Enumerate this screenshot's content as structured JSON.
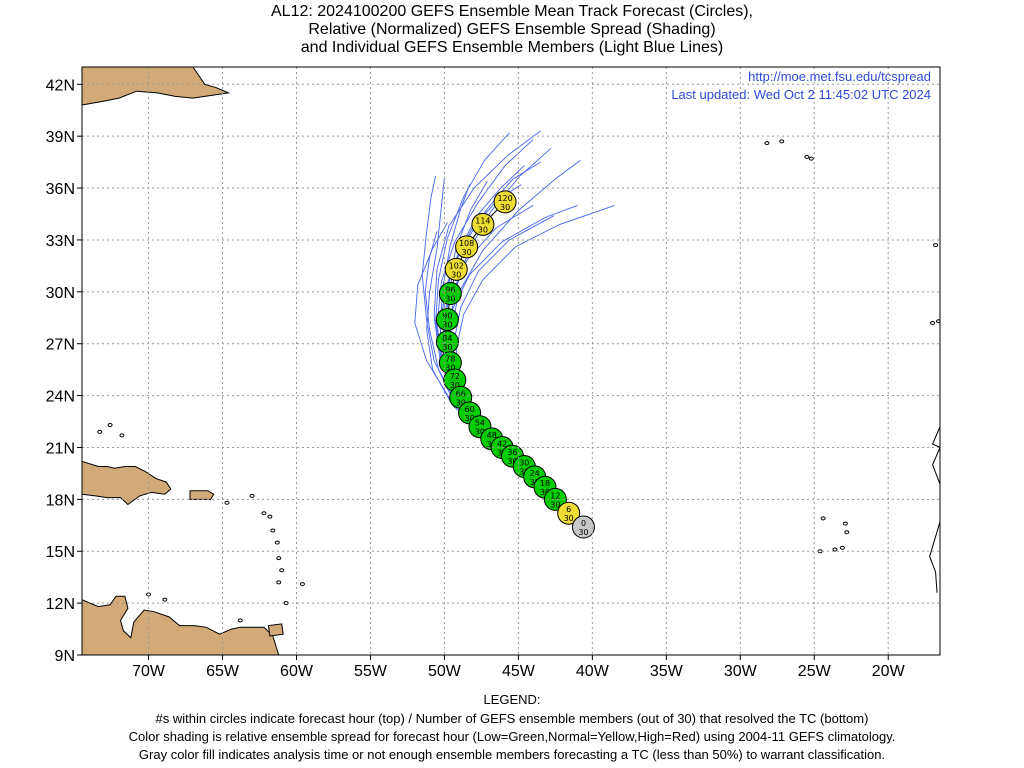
{
  "title": {
    "line1": "AL12: 2024100200 GEFS Ensemble Mean Track Forecast (Circles),",
    "line2": "Relative (Normalized) GEFS Ensemble Spread (Shading)",
    "line3": "and Individual GEFS Ensemble Members (Light Blue Lines)"
  },
  "site": {
    "url": "http://moe.met.fsu.edu/tcspread",
    "updated": "Last updated:  Wed Oct 2 11:45:02 UTC 2024"
  },
  "legend": {
    "heading": "LEGEND:",
    "line1": "#s within circles indicate forecast hour (top) / Number of GEFS ensemble members (out of 30) that resolved the TC (bottom)",
    "line2": "Color shading is relative ensemble spread for forecast hour (Low=Green,Normal=Yellow,High=Red) using 2004-11 GEFS climatology.",
    "line3": "Gray color fill indicates analysis time or not enough ensemble members forecasting a TC (less than 50%) to warrant classification."
  },
  "colors": {
    "land": "#d2aa78",
    "member_lines": "#4466ee",
    "low_spread": "#00cc00",
    "normal_spread": "#eedd33",
    "analysis_gray": "#c8c8c8",
    "site_text": "#2e4bd6"
  },
  "chart_data": {
    "type": "scatter",
    "xlim": [
      -74.5,
      -16.5
    ],
    "ylim": [
      9,
      43
    ],
    "x_ticks": [
      -70,
      -65,
      -60,
      -55,
      -50,
      -45,
      -40,
      -35,
      -30,
      -25,
      -20
    ],
    "x_tick_labels": [
      "70W",
      "65W",
      "60W",
      "55W",
      "50W",
      "45W",
      "40W",
      "35W",
      "30W",
      "25W",
      "20W"
    ],
    "y_ticks": [
      9,
      12,
      15,
      18,
      21,
      24,
      27,
      30,
      33,
      36,
      39,
      42
    ],
    "y_tick_labels": [
      "9N",
      "12N",
      "15N",
      "18N",
      "21N",
      "24N",
      "27N",
      "30N",
      "33N",
      "36N",
      "39N",
      "42N"
    ],
    "grid": true,
    "mean_track": [
      {
        "hour": "0",
        "members": "30",
        "lon": -40.6,
        "lat": 16.4,
        "spread": "gray"
      },
      {
        "hour": "6",
        "members": "30",
        "lon": -41.6,
        "lat": 17.2,
        "spread": "normal"
      },
      {
        "hour": "12",
        "members": "30",
        "lon": -42.5,
        "lat": 18.0,
        "spread": "low"
      },
      {
        "hour": "18",
        "members": "30",
        "lon": -43.2,
        "lat": 18.7,
        "spread": "low"
      },
      {
        "hour": "24",
        "members": "30",
        "lon": -43.9,
        "lat": 19.3,
        "spread": "low"
      },
      {
        "hour": "30",
        "members": "30",
        "lon": -44.6,
        "lat": 19.9,
        "spread": "low"
      },
      {
        "hour": "36",
        "members": "30",
        "lon": -45.4,
        "lat": 20.5,
        "spread": "low"
      },
      {
        "hour": "42",
        "members": "30",
        "lon": -46.1,
        "lat": 21.0,
        "spread": "low"
      },
      {
        "hour": "48",
        "members": "30",
        "lon": -46.8,
        "lat": 21.5,
        "spread": "low"
      },
      {
        "hour": "54",
        "members": "30",
        "lon": -47.6,
        "lat": 22.2,
        "spread": "low"
      },
      {
        "hour": "60",
        "members": "30",
        "lon": -48.3,
        "lat": 23.0,
        "spread": "low"
      },
      {
        "hour": "66",
        "members": "30",
        "lon": -48.9,
        "lat": 23.9,
        "spread": "low"
      },
      {
        "hour": "72",
        "members": "30",
        "lon": -49.3,
        "lat": 24.9,
        "spread": "low"
      },
      {
        "hour": "78",
        "members": "30",
        "lon": -49.6,
        "lat": 25.9,
        "spread": "low"
      },
      {
        "hour": "84",
        "members": "30",
        "lon": -49.8,
        "lat": 27.1,
        "spread": "low"
      },
      {
        "hour": "90",
        "members": "30",
        "lon": -49.8,
        "lat": 28.4,
        "spread": "low"
      },
      {
        "hour": "96",
        "members": "30",
        "lon": -49.6,
        "lat": 29.9,
        "spread": "low"
      },
      {
        "hour": "102",
        "members": "30",
        "lon": -49.2,
        "lat": 31.3,
        "spread": "normal"
      },
      {
        "hour": "108",
        "members": "30",
        "lon": -48.5,
        "lat": 32.6,
        "spread": "normal"
      },
      {
        "hour": "114",
        "members": "30",
        "lon": -47.4,
        "lat": 33.9,
        "spread": "normal"
      },
      {
        "hour": "120",
        "members": "30",
        "lon": -45.9,
        "lat": 35.2,
        "spread": "normal"
      }
    ],
    "members": [
      [
        [
          -47.5,
          21.8
        ],
        [
          -49.5,
          23.5
        ],
        [
          -50.8,
          25.5
        ],
        [
          -51.2,
          27.8
        ],
        [
          -51.0,
          30.0
        ],
        [
          -50.5,
          32.5
        ],
        [
          -50.2,
          35.0
        ],
        [
          -50.0,
          36.6
        ]
      ],
      [
        [
          -47.5,
          21.8
        ],
        [
          -49.3,
          23.5
        ],
        [
          -50.4,
          25.5
        ],
        [
          -51.0,
          27.8
        ],
        [
          -51.3,
          30.0
        ],
        [
          -51.0,
          32.0
        ],
        [
          -50.5,
          33.5
        ]
      ],
      [
        [
          -47.5,
          21.8
        ],
        [
          -49.0,
          23.3
        ],
        [
          -49.8,
          25.3
        ],
        [
          -50.0,
          27.5
        ],
        [
          -49.6,
          29.7
        ],
        [
          -48.5,
          31.8
        ],
        [
          -46.5,
          33.7
        ],
        [
          -44.0,
          35.0
        ]
      ],
      [
        [
          -47.5,
          21.8
        ],
        [
          -48.9,
          23.6
        ],
        [
          -49.6,
          25.7
        ],
        [
          -49.9,
          27.9
        ],
        [
          -49.7,
          30.1
        ],
        [
          -49.0,
          32.4
        ],
        [
          -47.8,
          34.4
        ],
        [
          -46.2,
          36.0
        ],
        [
          -44.6,
          37.3
        ]
      ],
      [
        [
          -47.5,
          21.8
        ],
        [
          -48.8,
          23.2
        ],
        [
          -49.6,
          24.8
        ],
        [
          -49.9,
          26.8
        ],
        [
          -49.5,
          28.9
        ],
        [
          -48.3,
          31.0
        ],
        [
          -46.1,
          32.9
        ],
        [
          -43.2,
          34.3
        ],
        [
          -41.0,
          35.0
        ]
      ],
      [
        [
          -47.5,
          21.8
        ],
        [
          -49.1,
          23.8
        ],
        [
          -50.1,
          25.9
        ],
        [
          -50.5,
          28.1
        ],
        [
          -50.2,
          30.6
        ],
        [
          -49.3,
          32.9
        ],
        [
          -47.7,
          35.2
        ],
        [
          -45.9,
          37.3
        ],
        [
          -44.0,
          38.8
        ]
      ],
      [
        [
          -47.5,
          21.8
        ],
        [
          -48.6,
          23.1
        ],
        [
          -49.1,
          24.8
        ],
        [
          -49.2,
          26.7
        ],
        [
          -48.7,
          28.7
        ],
        [
          -47.4,
          30.7
        ],
        [
          -45.2,
          32.6
        ],
        [
          -42.2,
          33.9
        ],
        [
          -38.5,
          35.0
        ]
      ],
      [
        [
          -47.5,
          21.8
        ],
        [
          -49.4,
          23.9
        ],
        [
          -50.7,
          26.0
        ],
        [
          -51.2,
          28.3
        ],
        [
          -51.5,
          31.0
        ],
        [
          -51.2,
          33.5
        ],
        [
          -50.9,
          35.5
        ],
        [
          -50.6,
          36.7
        ]
      ],
      [
        [
          -47.5,
          21.8
        ],
        [
          -48.9,
          23.5
        ],
        [
          -49.6,
          25.6
        ],
        [
          -49.7,
          27.7
        ],
        [
          -49.3,
          30.0
        ],
        [
          -48.4,
          32.3
        ],
        [
          -46.9,
          34.6
        ],
        [
          -44.9,
          36.7
        ],
        [
          -42.8,
          38.3
        ]
      ],
      [
        [
          -47.5,
          21.8
        ],
        [
          -49.0,
          23.6
        ],
        [
          -49.9,
          25.6
        ],
        [
          -50.3,
          27.9
        ],
        [
          -50.1,
          30.3
        ],
        [
          -49.6,
          32.7
        ],
        [
          -48.9,
          34.8
        ],
        [
          -48.3,
          36.2
        ]
      ],
      [
        [
          -47.5,
          21.8
        ],
        [
          -49.7,
          23.9
        ],
        [
          -51.2,
          26.0
        ],
        [
          -52.0,
          28.2
        ],
        [
          -51.8,
          30.4
        ],
        [
          -50.8,
          32.5
        ],
        [
          -49.8,
          34.0
        ]
      ],
      [
        [
          -47.5,
          21.8
        ],
        [
          -48.8,
          23.4
        ],
        [
          -49.5,
          25.4
        ],
        [
          -49.6,
          27.6
        ],
        [
          -49.0,
          30.0
        ],
        [
          -47.4,
          32.4
        ],
        [
          -45.0,
          34.7
        ],
        [
          -42.4,
          36.6
        ],
        [
          -40.8,
          37.6
        ]
      ],
      [
        [
          -47.5,
          21.8
        ],
        [
          -49.2,
          23.8
        ],
        [
          -50.2,
          26.0
        ],
        [
          -50.6,
          28.3
        ],
        [
          -50.4,
          30.7
        ],
        [
          -49.8,
          33.1
        ],
        [
          -48.7,
          35.5
        ],
        [
          -47.3,
          37.6
        ],
        [
          -45.6,
          39.2
        ]
      ],
      [
        [
          -47.5,
          21.8
        ],
        [
          -48.7,
          23.2
        ],
        [
          -49.3,
          24.9
        ],
        [
          -49.4,
          26.9
        ],
        [
          -48.9,
          29.1
        ],
        [
          -47.7,
          31.2
        ],
        [
          -45.6,
          33.0
        ],
        [
          -42.6,
          34.4
        ]
      ],
      [
        [
          -47.5,
          21.8
        ],
        [
          -49.3,
          23.8
        ],
        [
          -50.3,
          26.1
        ],
        [
          -50.7,
          28.6
        ],
        [
          -50.5,
          31.3
        ],
        [
          -49.7,
          33.8
        ],
        [
          -48.0,
          36.0
        ],
        [
          -45.7,
          37.9
        ],
        [
          -43.5,
          39.3
        ]
      ],
      [
        [
          -47.5,
          21.8
        ],
        [
          -49.0,
          23.5
        ],
        [
          -49.8,
          25.5
        ],
        [
          -50.0,
          27.7
        ],
        [
          -49.8,
          30.1
        ],
        [
          -49.2,
          32.6
        ],
        [
          -48.2,
          34.8
        ],
        [
          -47.1,
          36.4
        ]
      ],
      [
        [
          -47.5,
          21.8
        ],
        [
          -48.9,
          23.4
        ],
        [
          -49.7,
          25.2
        ],
        [
          -50.1,
          27.2
        ],
        [
          -50.0,
          29.4
        ],
        [
          -49.4,
          31.6
        ],
        [
          -48.1,
          33.7
        ],
        [
          -46.3,
          35.4
        ],
        [
          -44.8,
          36.2
        ]
      ],
      [
        [
          -47.5,
          21.8
        ],
        [
          -49.1,
          23.7
        ],
        [
          -50.0,
          25.8
        ],
        [
          -50.3,
          28.0
        ],
        [
          -49.9,
          30.3
        ],
        [
          -48.8,
          32.6
        ],
        [
          -47.1,
          34.8
        ],
        [
          -45.4,
          36.5
        ],
        [
          -43.5,
          37.5
        ]
      ]
    ],
    "land": [
      {
        "name": "hispaniola-puerto-rico",
        "points": [
          [
            -74.5,
            20.2
          ],
          [
            -73.4,
            19.9
          ],
          [
            -72.8,
            19.9
          ],
          [
            -72.3,
            19.8
          ],
          [
            -71.6,
            19.9
          ],
          [
            -70.9,
            19.9
          ],
          [
            -70.2,
            19.6
          ],
          [
            -69.5,
            19.2
          ],
          [
            -68.8,
            19.0
          ],
          [
            -68.5,
            18.6
          ],
          [
            -68.9,
            18.3
          ],
          [
            -69.8,
            18.4
          ],
          [
            -70.6,
            18.2
          ],
          [
            -71.4,
            17.7
          ],
          [
            -71.9,
            18.1
          ],
          [
            -72.8,
            18.1
          ],
          [
            -73.6,
            18.2
          ],
          [
            -74.5,
            18.3
          ]
        ]
      },
      {
        "name": "puerto-rico",
        "points": [
          [
            -67.2,
            18.5
          ],
          [
            -66.0,
            18.5
          ],
          [
            -65.6,
            18.3
          ],
          [
            -65.8,
            18.0
          ],
          [
            -67.2,
            18.0
          ]
        ]
      },
      {
        "name": "south-america",
        "points": [
          [
            -74.5,
            12.2
          ],
          [
            -73.4,
            11.8
          ],
          [
            -72.6,
            11.9
          ],
          [
            -72.2,
            12.4
          ],
          [
            -71.6,
            12.4
          ],
          [
            -71.4,
            11.7
          ],
          [
            -71.9,
            11.0
          ],
          [
            -71.7,
            10.4
          ],
          [
            -71.2,
            10.0
          ],
          [
            -71.0,
            10.9
          ],
          [
            -70.3,
            11.6
          ],
          [
            -69.6,
            11.5
          ],
          [
            -68.6,
            11.2
          ],
          [
            -67.9,
            10.7
          ],
          [
            -66.9,
            10.7
          ],
          [
            -66.1,
            10.6
          ],
          [
            -65.2,
            10.2
          ],
          [
            -64.4,
            10.5
          ],
          [
            -63.8,
            10.6
          ],
          [
            -62.8,
            10.6
          ],
          [
            -62.2,
            10.6
          ],
          [
            -61.6,
            10.1
          ],
          [
            -61.2,
            9.0
          ],
          [
            -74.5,
            9.0
          ]
        ]
      },
      {
        "name": "trinidad",
        "points": [
          [
            -61.9,
            10.7
          ],
          [
            -61.0,
            10.8
          ],
          [
            -60.9,
            10.2
          ],
          [
            -61.8,
            10.1
          ]
        ]
      },
      {
        "name": "newfoundland-nova-scotia",
        "points": [
          [
            -74.5,
            43.0
          ],
          [
            -67.0,
            43.0
          ],
          [
            -66.2,
            42.0
          ],
          [
            -65.4,
            41.8
          ],
          [
            -64.6,
            41.5
          ],
          [
            -67.0,
            41.2
          ],
          [
            -68.2,
            41.3
          ],
          [
            -69.4,
            41.5
          ],
          [
            -70.8,
            41.6
          ],
          [
            -72.0,
            41.2
          ],
          [
            -73.2,
            41.0
          ],
          [
            -74.5,
            40.8
          ]
        ]
      }
    ],
    "islands": [
      [
        -62.2,
        17.2
      ],
      [
        -61.8,
        17.0
      ],
      [
        -61.6,
        16.2
      ],
      [
        -61.3,
        15.5
      ],
      [
        -61.2,
        14.6
      ],
      [
        -61.0,
        13.9
      ],
      [
        -61.2,
        13.2
      ],
      [
        -59.6,
        13.1
      ],
      [
        -60.7,
        12.0
      ],
      [
        -63.0,
        18.2
      ],
      [
        -64.7,
        17.8
      ],
      [
        -73.3,
        21.9
      ],
      [
        -71.8,
        21.7
      ],
      [
        -72.6,
        22.3
      ],
      [
        -68.9,
        12.2
      ],
      [
        -70.0,
        12.5
      ],
      [
        -63.8,
        11.0
      ],
      [
        -28.2,
        38.6
      ],
      [
        -27.2,
        38.7
      ],
      [
        -25.5,
        37.8
      ],
      [
        -25.2,
        37.7
      ],
      [
        -16.8,
        32.7
      ],
      [
        -17.0,
        28.2
      ],
      [
        -16.6,
        28.3
      ],
      [
        -15.6,
        28.0
      ],
      [
        -24.4,
        16.9
      ],
      [
        -23.6,
        15.1
      ],
      [
        -24.6,
        15.0
      ],
      [
        -22.8,
        16.1
      ],
      [
        -23.1,
        15.2
      ],
      [
        -22.9,
        16.6
      ]
    ],
    "west_africa": [
      [
        -16.5,
        21.0
      ],
      [
        -17.0,
        21.2
      ],
      [
        -16.4,
        22.4
      ],
      [
        -16.5,
        23.5
      ],
      [
        -17.0,
        20.0
      ],
      [
        -16.6,
        19.1
      ],
      [
        -16.1,
        18.0
      ],
      [
        -16.5,
        16.7
      ],
      [
        -17.2,
        14.7
      ],
      [
        -16.8,
        13.8
      ],
      [
        -16.7,
        12.6
      ]
    ]
  }
}
